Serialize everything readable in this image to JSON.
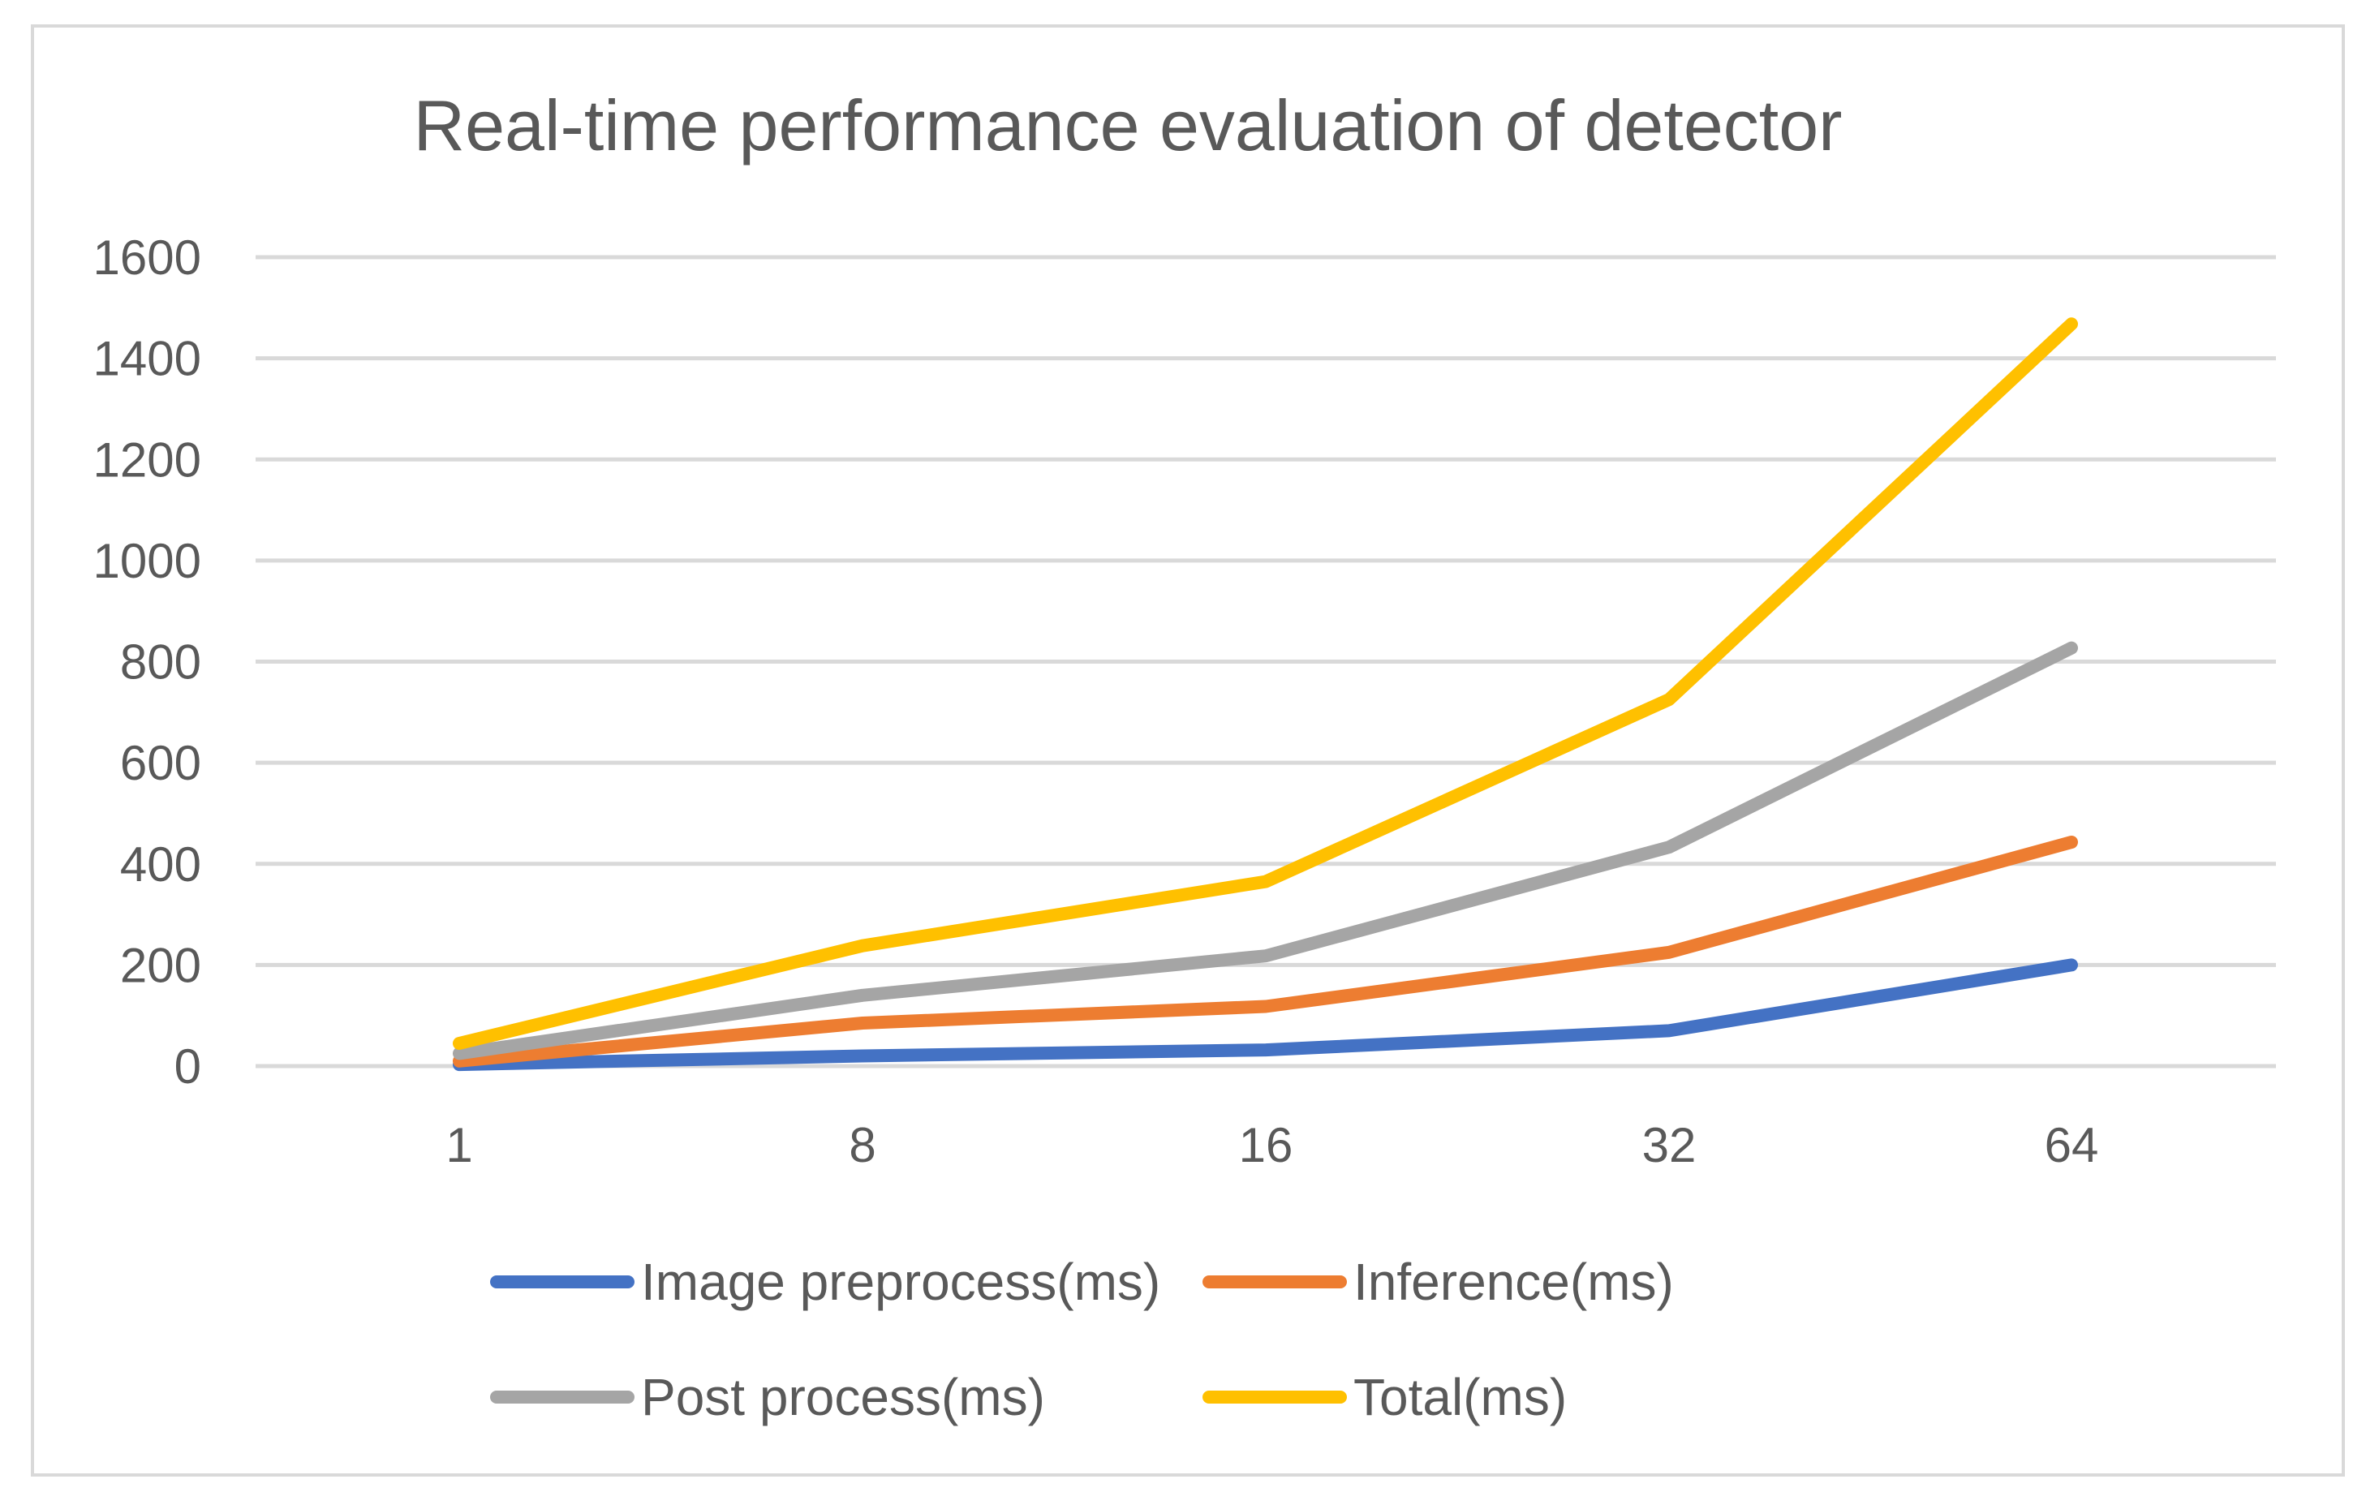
{
  "chart_data": {
    "type": "line",
    "title": "Real-time performance evaluation of detector",
    "xlabel": "",
    "ylabel": "",
    "categories": [
      "1",
      "8",
      "16",
      "32",
      "64"
    ],
    "ylim": [
      0,
      1600
    ],
    "yticks": [
      0,
      200,
      400,
      600,
      800,
      1000,
      1200,
      1400,
      1600
    ],
    "grid": true,
    "legend_position": "bottom",
    "series": [
      {
        "name": "Image preprocess(ms)",
        "color": "#4472C4",
        "values": [
          3,
          20,
          32,
          70,
          200
        ]
      },
      {
        "name": "Inference(ms)",
        "color": "#ED7D31",
        "values": [
          10,
          85,
          118,
          225,
          443
        ]
      },
      {
        "name": "Post process(ms)",
        "color": "#A5A5A5",
        "values": [
          25,
          140,
          218,
          433,
          827
        ]
      },
      {
        "name": "Total(ms)",
        "color": "#FFC000",
        "values": [
          45,
          238,
          365,
          725,
          1468
        ]
      }
    ]
  }
}
